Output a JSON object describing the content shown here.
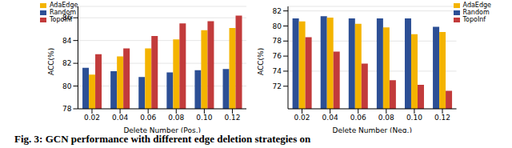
{
  "chart_data": [
    {
      "type": "bar",
      "x_label": "Delete Number (Pos.)",
      "y_label": "ACC(%)",
      "categories": [
        "0.02",
        "0.04",
        "0.06",
        "0.08",
        "0.10",
        "0.12"
      ],
      "series": [
        {
          "name": "Random",
          "color": "#2c4f95",
          "values": [
            81.6,
            81.3,
            80.8,
            81.2,
            81.4,
            81.5
          ]
        },
        {
          "name": "AdaEdge",
          "color": "#f4b400",
          "values": [
            81.0,
            82.6,
            83.3,
            84.1,
            84.9,
            85.1
          ]
        },
        {
          "name": "TopoInf",
          "color": "#c23b3b",
          "values": [
            82.8,
            83.3,
            84.4,
            85.5,
            85.7,
            86.2
          ]
        }
      ],
      "ylim": [
        78,
        87
      ],
      "yticks": [
        78,
        80,
        82,
        84,
        86
      ],
      "legend": "upper left"
    },
    {
      "type": "bar",
      "x_label": "Delete Number (Neg.)",
      "y_label": "ACC(%)",
      "categories": [
        "0.02",
        "0.04",
        "0.06",
        "0.08",
        "0.10",
        "0.12"
      ],
      "series": [
        {
          "name": "Random",
          "color": "#2c4f95",
          "values": [
            81.0,
            81.3,
            81.0,
            81.0,
            81.0,
            79.9
          ]
        },
        {
          "name": "AdaEdge",
          "color": "#f4b400",
          "values": [
            80.6,
            81.1,
            80.3,
            79.8,
            78.9,
            79.2
          ]
        },
        {
          "name": "TopoInf",
          "color": "#c23b3b",
          "values": [
            78.5,
            76.6,
            75.0,
            72.8,
            72.2,
            71.4
          ]
        }
      ],
      "ylim": [
        69,
        82.6
      ],
      "yticks": [
        72,
        74,
        76,
        78,
        80,
        82
      ],
      "legend": "upper right"
    }
  ],
  "caption": "Fig. 3: GCN performance with different edge deletion strategies on"
}
